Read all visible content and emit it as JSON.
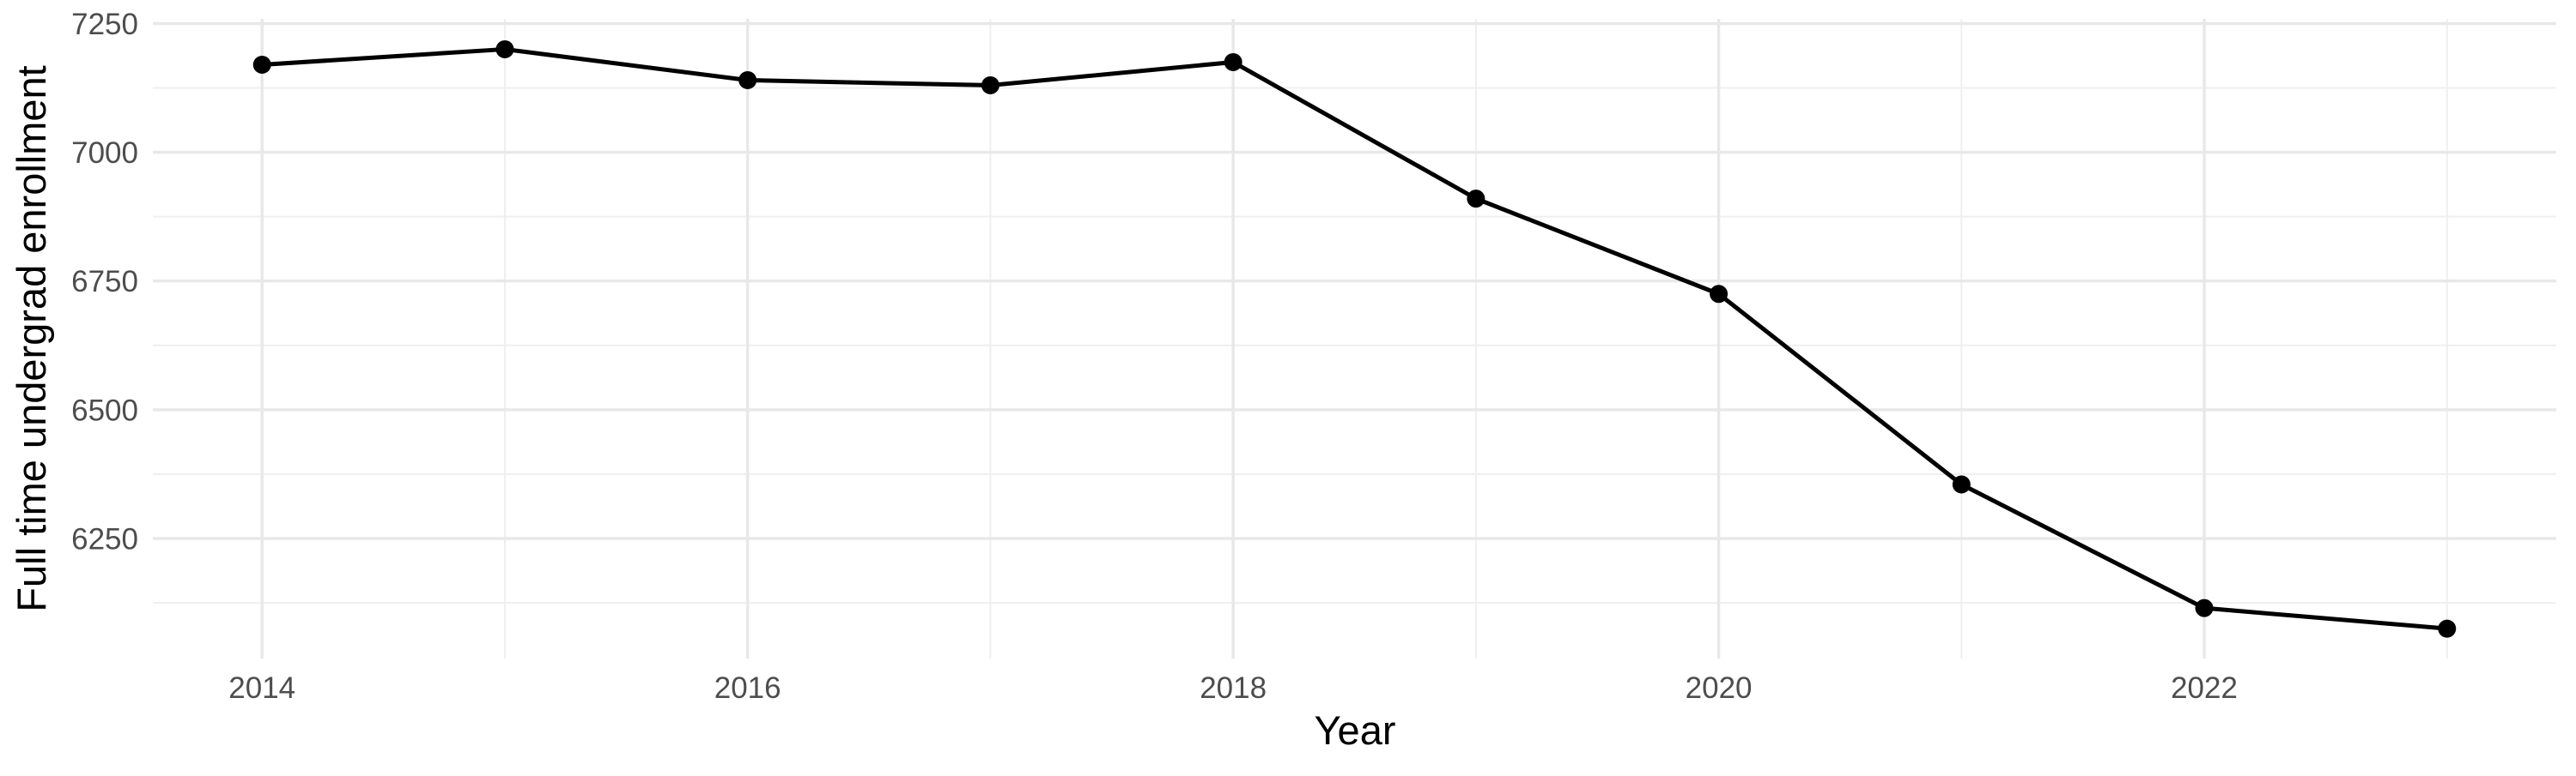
{
  "chart_data": {
    "type": "line",
    "title": "",
    "xlabel": "Year",
    "ylabel": "Full time undergrad enrollment",
    "x": [
      2014,
      2015,
      2016,
      2017,
      2018,
      2019,
      2020,
      2021,
      2022,
      2023
    ],
    "series": [
      {
        "name": "Full time undergrad enrollment",
        "values": [
          7170,
          7200,
          7140,
          7130,
          7175,
          6910,
          6725,
          6355,
          6115,
          6075
        ]
      }
    ],
    "x_major_ticks": [
      2014,
      2016,
      2018,
      2020,
      2022
    ],
    "x_minor_gridlines": [
      2015,
      2017,
      2019,
      2021,
      2023
    ],
    "y_major_ticks": [
      7250,
      7000,
      6750,
      6500,
      6250
    ],
    "y_minor_gridlines": [
      7125,
      6875,
      6625,
      6375,
      6125
    ],
    "xlim": [
      2013.55,
      2023.45
    ],
    "ylim": [
      6017,
      7259
    ],
    "grid": true,
    "legend_position": "none",
    "marker": "point",
    "colors": {
      "line": "#000000",
      "point": "#000000",
      "grid_major": "#E8E8E8",
      "grid_minor": "#EFEFEF",
      "tick_label": "#4D4D4D",
      "axis_title": "#000000",
      "background": "#FFFFFF"
    }
  }
}
